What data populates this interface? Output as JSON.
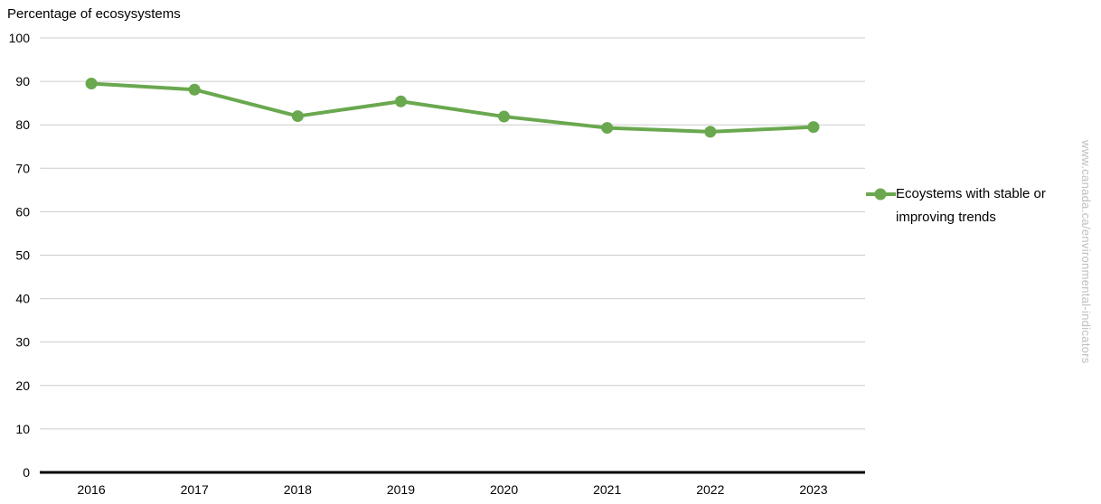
{
  "page": {
    "background": "#ffffff",
    "watermark": "www.canada.ca/environmental-indicators"
  },
  "chart_data": {
    "type": "line",
    "title": "Percentage of ecosysystems",
    "categories": [
      "2016",
      "2017",
      "2018",
      "2019",
      "2020",
      "2021",
      "2022",
      "2023"
    ],
    "series": [
      {
        "name": "Ecoystems with stable or improving trends",
        "values": [
          89.5,
          88.1,
          82.0,
          85.4,
          81.9,
          79.3,
          78.4,
          79.5
        ],
        "color": "#6aa84f"
      }
    ],
    "xlabel": "",
    "ylabel": "",
    "ylim": [
      0,
      100
    ],
    "yticks": [
      0,
      10,
      20,
      30,
      40,
      50,
      60,
      70,
      80,
      90,
      100
    ],
    "grid": "horizontal-only",
    "gridline_color": "#cccccc",
    "axis_line_color": "#000000",
    "tick_label_color": "#000000",
    "legend_position": "right",
    "marker": "circle"
  }
}
